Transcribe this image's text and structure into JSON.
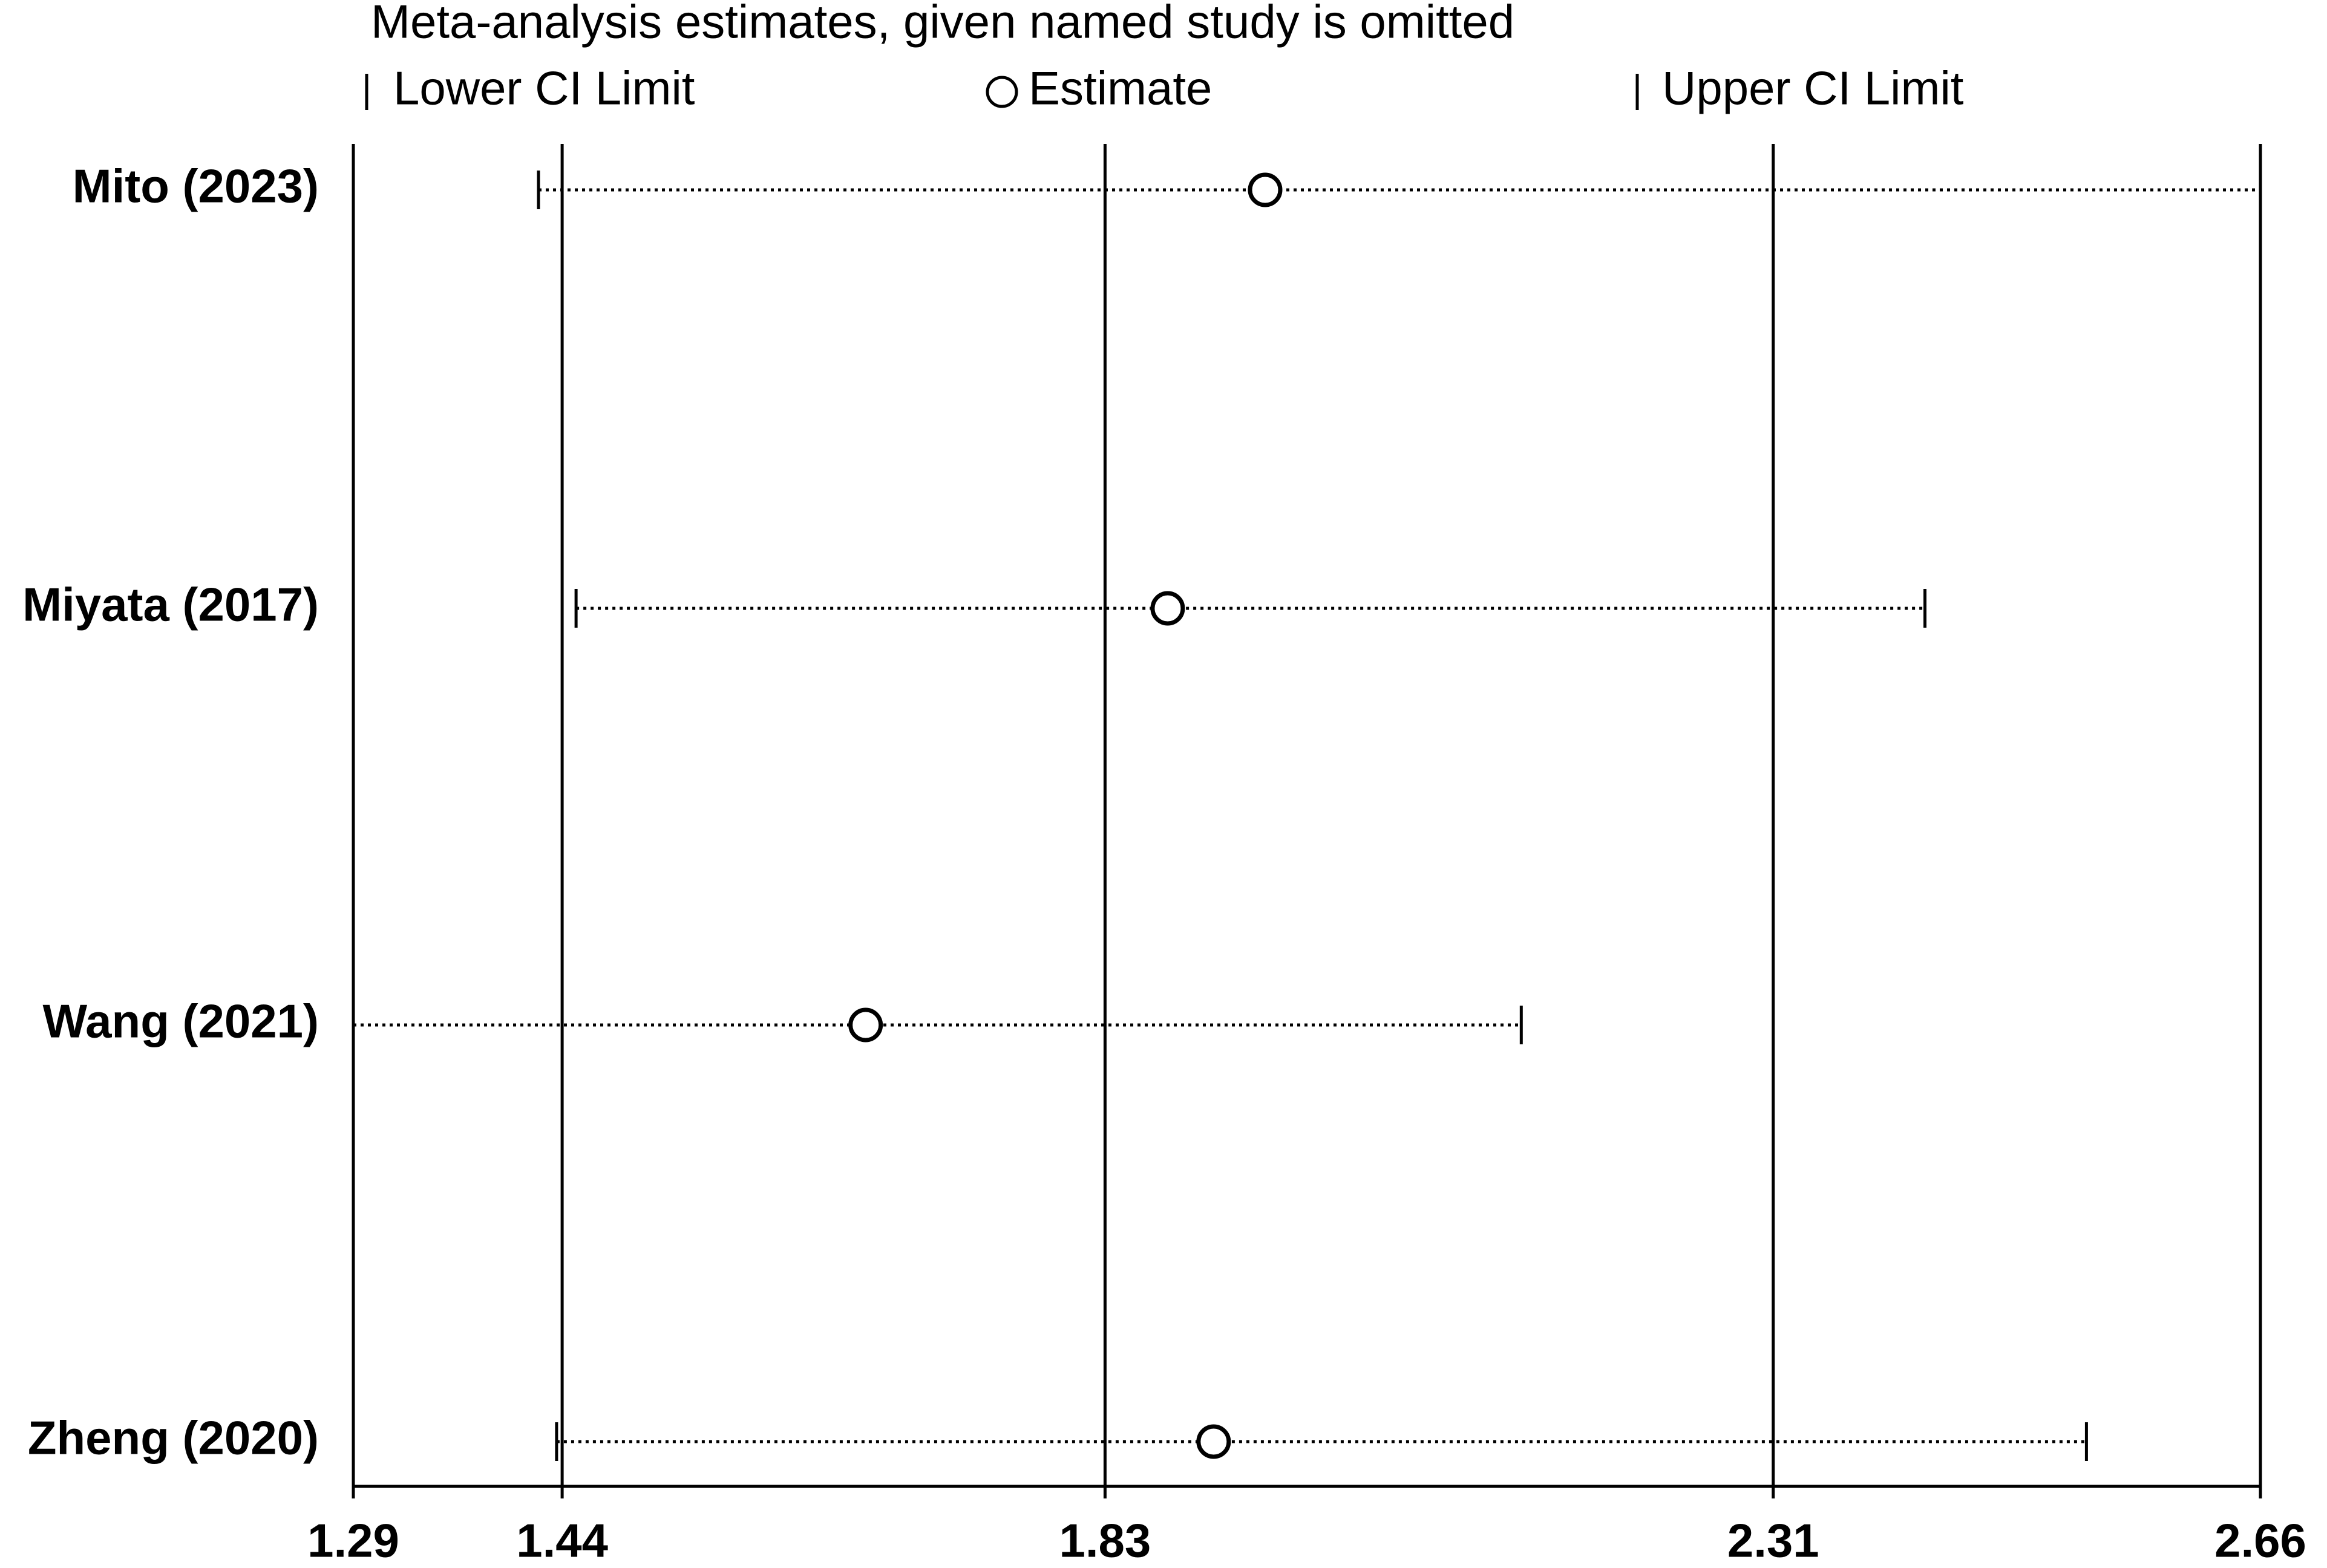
{
  "chart_data": {
    "type": "forest",
    "title": "Meta-analysis estimates, given named study is omitted",
    "categories": [
      "Mito (2023)",
      "Miyata (2017)",
      "Wang (2021)",
      "Zheng (2020)"
    ],
    "series": [
      {
        "name": "Lower CI Limit",
        "values": [
          1.423,
          1.45,
          1.29,
          1.436
        ]
      },
      {
        "name": "Estimate",
        "values": [
          1.945,
          1.875,
          1.658,
          1.908
        ]
      },
      {
        "name": "Upper CI Limit",
        "values": [
          2.66,
          2.419,
          2.129,
          2.535
        ]
      }
    ],
    "xlim": [
      1.29,
      2.66
    ],
    "xticks": [
      1.29,
      1.44,
      1.83,
      2.31,
      2.66
    ],
    "grid": true
  }
}
